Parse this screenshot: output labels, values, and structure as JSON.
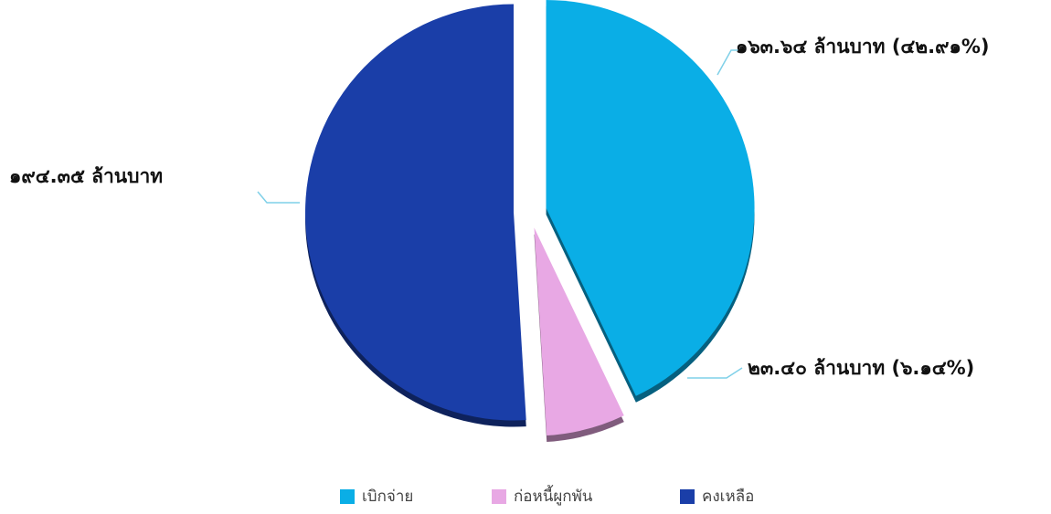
{
  "chart_data": {
    "type": "pie",
    "title": "",
    "unit": "ล้านบาท",
    "slices": [
      {
        "name": "เบิกจ่าย",
        "value": 163.64,
        "value_label": "๑๖๓.๖๔ ล้านบาท (๔๒.๙๑%)",
        "percent": 42.91,
        "color": "#0aaee6"
      },
      {
        "name": "ก่อหนี้ผูกพัน",
        "value": 23.4,
        "value_label": "๒๓.๔๐ ล้านบาท (๖.๑๔%)",
        "percent": 6.14,
        "color": "#e8a8e4"
      },
      {
        "name": "คงเหลือ",
        "value": 194.35,
        "value_label": "๑๙๔.๓๕ ล้านบาท",
        "percent": 50.95,
        "color": "#1a3ea8"
      }
    ],
    "legend_placement": "bottom",
    "leader_line_color": "#7fd0e8"
  }
}
